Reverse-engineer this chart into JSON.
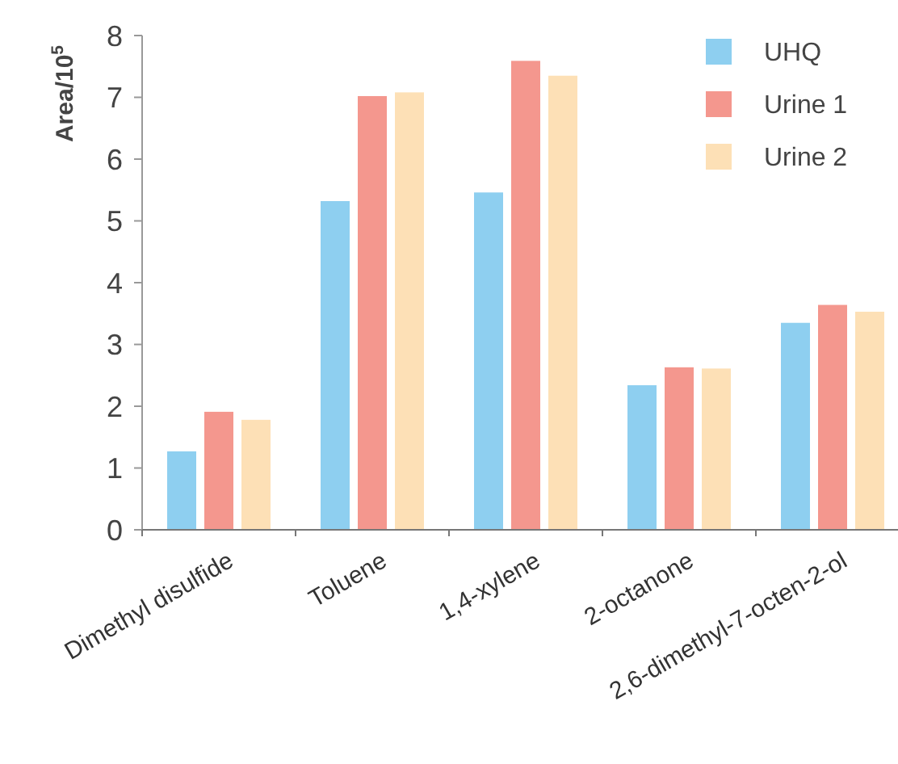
{
  "chart_data": {
    "type": "bar",
    "ylabel": "Area/10$^{5}$",
    "categories": [
      "Dimethyl disulfide",
      "Toluene",
      "1,4-xylene",
      "2-octanone",
      "2,6-dimethyl-7-octen-2-ol"
    ],
    "series": [
      {
        "name": "UHQ",
        "color": "#8ecff0",
        "values": [
          1.27,
          5.32,
          5.46,
          2.34,
          3.35
        ]
      },
      {
        "name": "Urine 1",
        "color": "#f4978e",
        "values": [
          1.91,
          7.02,
          7.59,
          2.63,
          3.64
        ]
      },
      {
        "name": "Urine 2",
        "color": "#fde0b6",
        "values": [
          1.78,
          7.08,
          7.35,
          2.61,
          3.53
        ]
      }
    ],
    "ylim": [
      0,
      8
    ],
    "yticks": [
      0,
      1,
      2,
      3,
      4,
      5,
      6,
      7,
      8
    ],
    "grid": false,
    "legend": "top right"
  }
}
